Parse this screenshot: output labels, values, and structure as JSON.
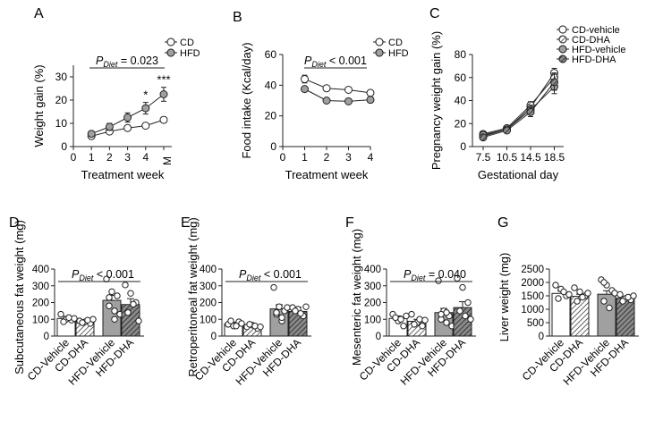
{
  "colors": {
    "cd_fill": "#ffffff",
    "hfd_fill": "#a0a0a0",
    "ink": "#222222",
    "hfd_dha_fill": "#606060"
  },
  "chart_data": [
    {
      "panel": "A",
      "type": "line",
      "xlabel": "Treatment week",
      "ylabel": "Weight gain (%)",
      "x_ticks": [
        "0",
        "1",
        "2",
        "3",
        "4",
        "M"
      ],
      "ylim": [
        0,
        35
      ],
      "y_ticks": [
        "0",
        "10",
        "20",
        "30"
      ],
      "series": [
        {
          "name": "CD",
          "marker": "open",
          "x": [
            1,
            2,
            3,
            4,
            5
          ],
          "y": [
            4.5,
            6.5,
            8,
            9,
            11.5
          ],
          "err": [
            1,
            1,
            0.8,
            1,
            1.2
          ]
        },
        {
          "name": "HFD",
          "marker": "filled",
          "x": [
            1,
            2,
            3,
            4,
            5
          ],
          "y": [
            5.5,
            8.5,
            12.5,
            16.5,
            22.5
          ],
          "err": [
            1,
            1.5,
            2,
            2.5,
            3
          ]
        }
      ],
      "stat_label": {
        "prefix": "P",
        "sub": "Diet",
        "text": " = 0.023"
      },
      "sig_marks": [
        {
          "x": 4,
          "text": "*"
        },
        {
          "x": 5,
          "text": "***"
        }
      ],
      "legend": "top-right"
    },
    {
      "panel": "B",
      "type": "line",
      "xlabel": "Treatment week",
      "ylabel": "Food intake (Kcal/day)",
      "x_ticks": [
        "0",
        "1",
        "2",
        "3",
        "4"
      ],
      "ylim": [
        0,
        60
      ],
      "y_ticks": [
        "0",
        "20",
        "40",
        "60"
      ],
      "series": [
        {
          "name": "CD",
          "marker": "open",
          "x": [
            1,
            2,
            3,
            4
          ],
          "y": [
            44,
            38,
            37,
            35
          ],
          "err": [
            2.5,
            1.5,
            1.5,
            1.5
          ]
        },
        {
          "name": "HFD",
          "marker": "filled",
          "x": [
            1,
            2,
            3,
            4
          ],
          "y": [
            37.5,
            30,
            29.5,
            30.5
          ],
          "err": [
            1.5,
            1,
            1,
            1
          ]
        }
      ],
      "stat_label": {
        "prefix": "P",
        "sub": "Diet",
        "text": " < 0.001"
      },
      "legend": "top-right"
    },
    {
      "panel": "C",
      "type": "line",
      "xlabel": "Gestational day",
      "ylabel": "Pregnancy weight gain (%)",
      "x_ticks": [
        "7.5",
        "10.5",
        "14.5",
        "18.5"
      ],
      "ylim": [
        0,
        80
      ],
      "y_ticks": [
        "0",
        "20",
        "40",
        "60",
        "80"
      ],
      "series": [
        {
          "name": "CD-vehicle",
          "marker": "open",
          "x": [
            "7.5",
            "10.5",
            "14.5",
            "18.5"
          ],
          "y": [
            9,
            15,
            34,
            64
          ],
          "err": [
            2,
            2,
            3,
            4
          ]
        },
        {
          "name": "CD-DHA",
          "marker": "hatched",
          "x": [
            "7.5",
            "10.5",
            "14.5",
            "18.5"
          ],
          "y": [
            11,
            16,
            36,
            60
          ],
          "err": [
            2,
            2,
            3,
            4
          ]
        },
        {
          "name": "HFD-vehicle",
          "marker": "filled",
          "x": [
            "7.5",
            "10.5",
            "14.5",
            "18.5"
          ],
          "y": [
            10,
            15,
            32,
            52
          ],
          "err": [
            2,
            2,
            4,
            6
          ]
        },
        {
          "name": "HFD-DHA",
          "marker": "dark",
          "x": [
            "7.5",
            "10.5",
            "14.5",
            "18.5"
          ],
          "y": [
            8,
            14,
            30,
            56
          ],
          "err": [
            2,
            2,
            4,
            7
          ]
        }
      ],
      "legend": "top-right"
    },
    {
      "panel": "D",
      "type": "bar",
      "ylabel": "Subcutaneous fat weight (mg)",
      "categories": [
        "CD-Vehicle",
        "CD-DHA",
        "HFD-Vehicle",
        "HFD-DHA"
      ],
      "values": [
        105,
        88,
        213,
        188
      ],
      "err": [
        12,
        8,
        30,
        35
      ],
      "points": [
        [
          130,
          100,
          95,
          85,
          110,
          105
        ],
        [
          90,
          85,
          75,
          80,
          95,
          100
        ],
        [
          340,
          265,
          240,
          180,
          150,
          130,
          230,
          100
        ],
        [
          305,
          255,
          200,
          140,
          190,
          90
        ]
      ],
      "ylim": [
        0,
        400
      ],
      "y_ticks": [
        "0",
        "100",
        "200",
        "300",
        "400"
      ],
      "stat_label": {
        "prefix": "P",
        "sub": "Diet",
        "text": " < 0.001"
      }
    },
    {
      "panel": "E",
      "type": "bar",
      "ylabel": "Retroperitoneal fat weight (mg)",
      "categories": [
        "CD-Vehicle",
        "CD-DHA",
        "HFD-Vehicle",
        "HFD-DHA"
      ],
      "values": [
        73,
        60,
        162,
        147
      ],
      "err": [
        10,
        8,
        25,
        25
      ],
      "points": [
        [
          70,
          60,
          85,
          90,
          60,
          75
        ],
        [
          55,
          65,
          45,
          70,
          60,
          55
        ],
        [
          290,
          175,
          150,
          130,
          90,
          170,
          140,
          110
        ],
        [
          170,
          160,
          120,
          150,
          135,
          175
        ]
      ],
      "ylim": [
        0,
        400
      ],
      "y_ticks": [
        "0",
        "100",
        "200",
        "300",
        "400"
      ],
      "stat_label": {
        "prefix": "P",
        "sub": "Diet",
        "text": " < 0.001"
      }
    },
    {
      "panel": "F",
      "type": "bar",
      "ylabel": "Mesenteric fat weight (mg)",
      "categories": [
        "CD-Vehicle",
        "CD-DHA",
        "HFD-Vehicle",
        "HFD-DHA"
      ],
      "values": [
        105,
        88,
        140,
        170
      ],
      "err": [
        15,
        12,
        25,
        35
      ],
      "points": [
        [
          130,
          90,
          60,
          110,
          100,
          120
        ],
        [
          130,
          80,
          60,
          70,
          100,
          95
        ],
        [
          330,
          150,
          120,
          100,
          140,
          60,
          130,
          80
        ],
        [
          345,
          290,
          200,
          150,
          120,
          100
        ]
      ],
      "ylim": [
        0,
        400
      ],
      "y_ticks": [
        "0",
        "100",
        "200",
        "300",
        "400"
      ],
      "stat_label": {
        "prefix": "P",
        "sub": "Diet",
        "text": " = 0.040"
      }
    },
    {
      "panel": "G",
      "type": "bar",
      "ylabel": "Liver weight (mg)",
      "categories": [
        "CD-Vehicle",
        "CD-DHA",
        "HFD-Vehicle",
        "HFD-DHA"
      ],
      "values": [
        1590,
        1480,
        1560,
        1410
      ],
      "err": [
        90,
        80,
        130,
        70
      ],
      "points": [
        [
          1900,
          1750,
          1500,
          1400,
          1650,
          1550
        ],
        [
          1800,
          1650,
          1500,
          1300,
          1450,
          1600
        ],
        [
          2100,
          1900,
          1700,
          1300,
          1050,
          1600,
          2000
        ],
        [
          1550,
          1400,
          1350,
          1300,
          1450,
          1500
        ]
      ],
      "ylim": [
        0,
        2500
      ],
      "y_ticks": [
        "0",
        "500",
        "1000",
        "1500",
        "2000",
        "2500"
      ]
    }
  ],
  "panel_letters": [
    "A",
    "B",
    "C",
    "D",
    "E",
    "F",
    "G"
  ]
}
